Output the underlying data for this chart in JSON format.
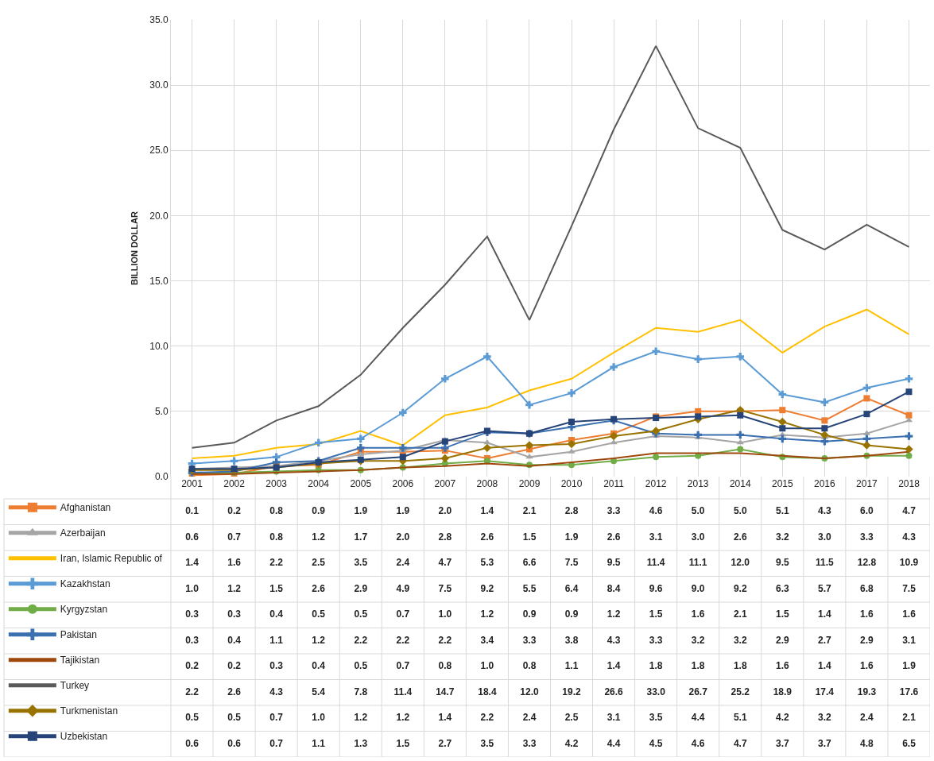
{
  "chart_data": {
    "type": "line",
    "ylabel": "BILLION DOLLAR",
    "categories": [
      "2001",
      "2002",
      "2003",
      "2004",
      "2005",
      "2006",
      "2007",
      "2008",
      "2009",
      "2010",
      "2011",
      "2012",
      "2013",
      "2014",
      "2015",
      "2016",
      "2017",
      "2018"
    ],
    "ylim": [
      0,
      35
    ],
    "yticks": [
      {
        "value": 0,
        "label": "0.0"
      },
      {
        "value": 5,
        "label": "5.0"
      },
      {
        "value": 10,
        "label": "10.0"
      },
      {
        "value": 15,
        "label": "15.0"
      },
      {
        "value": 20,
        "label": "20.0"
      },
      {
        "value": 25,
        "label": "25.0"
      },
      {
        "value": 30,
        "label": "30.0"
      },
      {
        "value": 35,
        "label": "35.0"
      }
    ],
    "grid": true,
    "legend": "bottom left",
    "line_style": "solid",
    "series": [
      {
        "name": "Afghanistan",
        "color": "#ed7d31",
        "marker": "square",
        "values": [
          0.1,
          0.2,
          0.8,
          0.9,
          1.9,
          1.9,
          2.0,
          1.4,
          2.1,
          2.8,
          3.3,
          4.6,
          5.0,
          5.0,
          5.1,
          4.3,
          6.0,
          4.7
        ],
        "value_labels": [
          "0.1",
          "0.2",
          "0.8",
          "0.9",
          "1.9",
          "1.9",
          "2.0",
          "1.4",
          "2.1",
          "2.8",
          "3.3",
          "4.6",
          "5.0",
          "5.0",
          "5.1",
          "4.3",
          "6.0",
          "4.7"
        ]
      },
      {
        "name": "Azerbaijan",
        "color": "#a5a5a5",
        "marker": "triangle",
        "values": [
          0.6,
          0.7,
          0.8,
          1.2,
          1.7,
          2.0,
          2.8,
          2.6,
          1.5,
          1.9,
          2.6,
          3.1,
          3.0,
          2.6,
          3.2,
          3.0,
          3.3,
          4.3
        ],
        "value_labels": [
          "0.6",
          "0.7",
          "0.8",
          "1.2",
          "1.7",
          "2.0",
          "2.8",
          "2.6",
          "1.5",
          "1.9",
          "2.6",
          "3.1",
          "3.0",
          "2.6",
          "3.2",
          "3.0",
          "3.3",
          "4.3"
        ]
      },
      {
        "name": "Iran, Islamic Republic of",
        "color": "#ffc000",
        "marker": "none",
        "values": [
          1.4,
          1.6,
          2.2,
          2.5,
          3.5,
          2.4,
          4.7,
          5.3,
          6.6,
          7.5,
          9.5,
          11.4,
          11.1,
          12.0,
          9.5,
          11.5,
          12.8,
          10.9
        ],
        "value_labels": [
          "1.4",
          "1.6",
          "2.2",
          "2.5",
          "3.5",
          "2.4",
          "4.7",
          "5.3",
          "6.6",
          "7.5",
          "9.5",
          "11.4",
          "11.1",
          "12.0",
          "9.5",
          "11.5",
          "12.8",
          "10.9"
        ]
      },
      {
        "name": "Kazakhstan",
        "color": "#5b9bd5",
        "marker": "cross",
        "values": [
          1.0,
          1.2,
          1.5,
          2.6,
          2.9,
          4.9,
          7.5,
          9.2,
          5.5,
          6.4,
          8.4,
          9.6,
          9.0,
          9.2,
          6.3,
          5.7,
          6.8,
          7.5
        ],
        "value_labels": [
          "1.0",
          "1.2",
          "1.5",
          "2.6",
          "2.9",
          "4.9",
          "7.5",
          "9.2",
          "5.5",
          "6.4",
          "8.4",
          "9.6",
          "9.0",
          "9.2",
          "6.3",
          "5.7",
          "6.8",
          "7.5"
        ]
      },
      {
        "name": "Kyrgyzstan",
        "color": "#70ad47",
        "marker": "circle",
        "values": [
          0.3,
          0.3,
          0.4,
          0.5,
          0.5,
          0.7,
          1.0,
          1.2,
          0.9,
          0.9,
          1.2,
          1.5,
          1.6,
          2.1,
          1.5,
          1.4,
          1.6,
          1.6
        ],
        "value_labels": [
          "0.3",
          "0.3",
          "0.4",
          "0.5",
          "0.5",
          "0.7",
          "1.0",
          "1.2",
          "0.9",
          "0.9",
          "1.2",
          "1.5",
          "1.6",
          "2.1",
          "1.5",
          "1.4",
          "1.6",
          "1.6"
        ]
      },
      {
        "name": "Pakistan",
        "color": "#3a6fb0",
        "marker": "cross",
        "values": [
          0.3,
          0.4,
          1.1,
          1.2,
          2.2,
          2.2,
          2.2,
          3.4,
          3.3,
          3.8,
          4.3,
          3.3,
          3.2,
          3.2,
          2.9,
          2.7,
          2.9,
          3.1
        ],
        "value_labels": [
          "0.3",
          "0.4",
          "1.1",
          "1.2",
          "2.2",
          "2.2",
          "2.2",
          "3.4",
          "3.3",
          "3.8",
          "4.3",
          "3.3",
          "3.2",
          "3.2",
          "2.9",
          "2.7",
          "2.9",
          "3.1"
        ]
      },
      {
        "name": "Tajikistan",
        "color": "#9e480e",
        "marker": "none",
        "values": [
          0.2,
          0.2,
          0.3,
          0.4,
          0.5,
          0.7,
          0.8,
          1.0,
          0.8,
          1.1,
          1.4,
          1.8,
          1.8,
          1.8,
          1.6,
          1.4,
          1.6,
          1.9
        ],
        "value_labels": [
          "0.2",
          "0.2",
          "0.3",
          "0.4",
          "0.5",
          "0.7",
          "0.8",
          "1.0",
          "0.8",
          "1.1",
          "1.4",
          "1.8",
          "1.8",
          "1.8",
          "1.6",
          "1.4",
          "1.6",
          "1.9"
        ]
      },
      {
        "name": "Turkey",
        "color": "#595959",
        "marker": "none",
        "values": [
          2.2,
          2.6,
          4.3,
          5.4,
          7.8,
          11.4,
          14.7,
          18.4,
          12.0,
          19.2,
          26.6,
          33.0,
          26.7,
          25.2,
          18.9,
          17.4,
          19.3,
          17.6
        ],
        "value_labels": [
          "2.2",
          "2.6",
          "4.3",
          "5.4",
          "7.8",
          "11.4",
          "14.7",
          "18.4",
          "12.0",
          "19.2",
          "26.6",
          "33.0",
          "26.7",
          "25.2",
          "18.9",
          "17.4",
          "19.3",
          "17.6"
        ]
      },
      {
        "name": "Turkmenistan",
        "color": "#997300",
        "marker": "diamond",
        "values": [
          0.5,
          0.5,
          0.7,
          1.0,
          1.2,
          1.2,
          1.4,
          2.2,
          2.4,
          2.5,
          3.1,
          3.5,
          4.4,
          5.1,
          4.2,
          3.2,
          2.4,
          2.1
        ],
        "value_labels": [
          "0.5",
          "0.5",
          "0.7",
          "1.0",
          "1.2",
          "1.2",
          "1.4",
          "2.2",
          "2.4",
          "2.5",
          "3.1",
          "3.5",
          "4.4",
          "5.1",
          "4.2",
          "3.2",
          "2.4",
          "2.1"
        ]
      },
      {
        "name": "Uzbekistan",
        "color": "#264478",
        "marker": "square",
        "values": [
          0.6,
          0.6,
          0.7,
          1.1,
          1.3,
          1.5,
          2.7,
          3.5,
          3.3,
          4.2,
          4.4,
          4.5,
          4.6,
          4.7,
          3.7,
          3.7,
          4.8,
          6.5
        ],
        "value_labels": [
          "0.6",
          "0.6",
          "0.7",
          "1.1",
          "1.3",
          "1.5",
          "2.7",
          "3.5",
          "3.3",
          "4.2",
          "4.4",
          "4.5",
          "4.6",
          "4.7",
          "3.7",
          "3.7",
          "4.8",
          "6.5"
        ]
      }
    ]
  }
}
